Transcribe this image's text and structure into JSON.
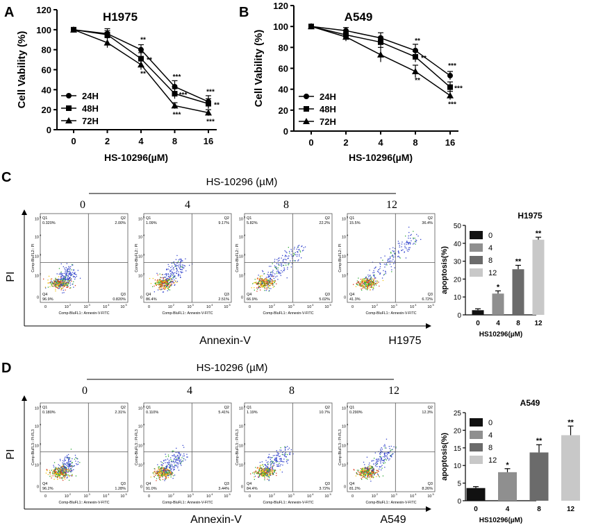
{
  "panels": {
    "A": {
      "letter": "A"
    },
    "B": {
      "letter": "B"
    },
    "C": {
      "letter": "C",
      "header": "HS-10296 (µM)",
      "doses": [
        "0",
        "4",
        "8",
        "12"
      ],
      "y_axis": "PI",
      "x_axis": "Annexin-V",
      "cell_line": "H1975",
      "flow_axis_y": "Comp-BluFL2:: PI",
      "flow_axis_x": "Comp-BluFL1:: Annexin-V-FITC",
      "quadrants": [
        {
          "q1": "0.320%",
          "q2": "2.00%",
          "q3": "0.820%",
          "q4": "96.9%"
        },
        {
          "q1": "1.09%",
          "q2": "9.17%",
          "q3": "2.51%",
          "q4": "86.4%"
        },
        {
          "q1": "5.82%",
          "q2": "22.2%",
          "q3": "5.02%",
          "q4": "66.9%"
        },
        {
          "q1": "15.5%",
          "q2": "36.4%",
          "q3": "6.72%",
          "q4": "41.3%"
        }
      ]
    },
    "D": {
      "letter": "D",
      "header": "HS-10296 (µM)",
      "doses": [
        "0",
        "4",
        "8",
        "12"
      ],
      "y_axis": "PI",
      "x_axis": "Annexin-V",
      "cell_line": "A549",
      "flow_axis_y": "Comp-BluFL3:: PI-FL3",
      "flow_axis_x": "Comp-BluFL1:: Annexin-V-FITC",
      "quadrants": [
        {
          "q1": "0.180%",
          "q2": "2.31%",
          "q3": "1.28%",
          "q4": "96.2%"
        },
        {
          "q1": "0.110%",
          "q2": "5.41%",
          "q3": "3.44%",
          "q4": "91.0%"
        },
        {
          "q1": "1.19%",
          "q2": "10.7%",
          "q3": "3.72%",
          "q4": "84.4%"
        },
        {
          "q1": "0.290%",
          "q2": "12.3%",
          "q3": "8.26%",
          "q4": "81.2%"
        }
      ]
    }
  },
  "flow_labels": {
    "q1": "Q1",
    "q2": "Q2",
    "q3": "Q3",
    "q4": "Q4"
  },
  "flow_ticks": {
    "t0": "0",
    "t2": "10",
    "e2": "2",
    "t3": "10",
    "e3": "3",
    "t4": "10",
    "e4": "4",
    "t5": "10",
    "e5": "5"
  },
  "chart_data": [
    {
      "type": "line",
      "title": "H1975",
      "xlabel": "HS-10296(µM)",
      "ylabel": "Cell Vability (%)",
      "x": [
        "0",
        "2",
        "4",
        "8",
        "16"
      ],
      "ylim": [
        0,
        120
      ],
      "yticks": [
        "0",
        "20",
        "40",
        "60",
        "80",
        "100",
        "120"
      ],
      "series": [
        {
          "name": "24H",
          "marker": "circle",
          "values": [
            100,
            96,
            80,
            43,
            28
          ],
          "errors": [
            0,
            5,
            5,
            6,
            6
          ],
          "sig": [
            "",
            "",
            "**",
            "***",
            "***"
          ]
        },
        {
          "name": "48H",
          "marker": "square",
          "values": [
            100,
            95,
            71,
            36,
            26
          ],
          "errors": [
            0,
            4,
            6,
            5,
            5
          ],
          "sig": [
            "",
            "",
            "**",
            "***",
            "**"
          ]
        },
        {
          "name": "72H",
          "marker": "triangle",
          "values": [
            100,
            87,
            65,
            24,
            17
          ],
          "errors": [
            0,
            5,
            5,
            3,
            3
          ],
          "sig": [
            "",
            "",
            "**",
            "***",
            "***"
          ]
        }
      ]
    },
    {
      "type": "line",
      "title": "A549",
      "xlabel": "HS-10296(µM)",
      "ylabel": "Cell Vability (%)",
      "x": [
        "0",
        "2",
        "4",
        "8",
        "16"
      ],
      "ylim": [
        0,
        120
      ],
      "yticks": [
        "0",
        "20",
        "40",
        "60",
        "80",
        "100",
        "120"
      ],
      "series": [
        {
          "name": "24H",
          "marker": "circle",
          "values": [
            100,
            96,
            89,
            77,
            53
          ],
          "errors": [
            0,
            3,
            5,
            6,
            4
          ],
          "sig": [
            "",
            "",
            "",
            "**",
            "***"
          ]
        },
        {
          "name": "48H",
          "marker": "square",
          "values": [
            100,
            92,
            85,
            71,
            42
          ],
          "errors": [
            0,
            4,
            5,
            5,
            5
          ],
          "sig": [
            "",
            "",
            "",
            "**",
            "***"
          ]
        },
        {
          "name": "72H",
          "marker": "triangle",
          "values": [
            100,
            90,
            73,
            57,
            34
          ],
          "errors": [
            0,
            4,
            7,
            6,
            4
          ],
          "sig": [
            "",
            "",
            "",
            "**",
            "***"
          ]
        }
      ]
    },
    {
      "type": "bar",
      "title": "H1975",
      "xlabel": "HS10296(µM)",
      "ylabel": "apoptosis(%)",
      "categories": [
        "0",
        "4",
        "8",
        "12"
      ],
      "values": [
        2.6,
        11.9,
        25.5,
        42.0
      ],
      "errors": [
        0.8,
        1.5,
        2.2,
        1.4
      ],
      "sig": [
        "",
        "*",
        "**",
        "**"
      ],
      "colors": [
        "#111111",
        "#8f8f8f",
        "#6b6b6b",
        "#c8c8c8"
      ],
      "ylim": [
        0,
        50
      ],
      "yticks": [
        "0",
        "10",
        "20",
        "30",
        "40",
        "50"
      ],
      "legend": [
        "0",
        "4",
        "8",
        "12"
      ]
    },
    {
      "type": "bar",
      "title": "A549",
      "xlabel": "HS10296(µM)",
      "ylabel": "apoptosis(%)",
      "categories": [
        "0",
        "4",
        "8",
        "12"
      ],
      "values": [
        3.6,
        8.1,
        13.7,
        18.6
      ],
      "errors": [
        0.4,
        1.0,
        2.2,
        2.6
      ],
      "sig": [
        "",
        "*",
        "**",
        "**"
      ],
      "colors": [
        "#111111",
        "#8f8f8f",
        "#6b6b6b",
        "#c8c8c8"
      ],
      "ylim": [
        0,
        25
      ],
      "yticks": [
        "0",
        "5",
        "10",
        "15",
        "20",
        "25"
      ],
      "legend": [
        "0",
        "4",
        "8",
        "12"
      ]
    }
  ]
}
